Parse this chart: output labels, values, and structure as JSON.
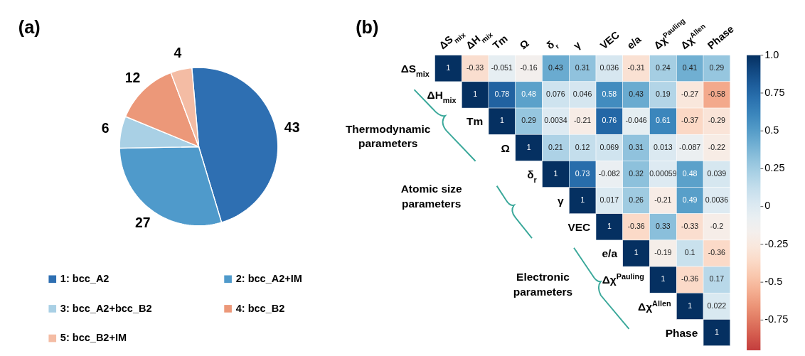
{
  "chart_data": [
    {
      "type": "pie",
      "title": "(a)",
      "categories": [
        "1: bcc_A2",
        "2: bcc_A2+IM",
        "3: bcc_A2+bcc_B2",
        "4: bcc_B2",
        "5: bcc_B2+IM"
      ],
      "values": [
        43,
        27,
        6,
        12,
        4
      ],
      "colors": [
        "#2e6fb2",
        "#4f9acb",
        "#a9d0e5",
        "#ec9879",
        "#f4bca4"
      ],
      "data_labels": true,
      "legend": "bottom"
    },
    {
      "type": "heatmap",
      "title": "(b)",
      "categories": [
        "ΔS$_{mix}$",
        "ΔH$_{mix}$",
        "Tm",
        "Ω",
        "δ$_{r}$",
        "γ",
        "VEC",
        "e/a",
        "Δχ$^{Pauling}$",
        "Δχ$^{Allen}$",
        "Phase"
      ],
      "y_categories": [
        "ΔS$_{mix}$",
        "ΔH$_{mix}$",
        "Tm",
        "Ω",
        "δ$_{r}$",
        "γ",
        "VEC",
        "e/a",
        "Δχ$^{Pauling}$",
        "Δχ$^{Allen}$",
        "Phase"
      ],
      "cells": [
        [
          1,
          -0.33,
          -0.051,
          -0.16,
          0.43,
          0.31,
          0.036,
          -0.31,
          0.24,
          0.41,
          0.29
        ],
        [
          null,
          1,
          0.78,
          0.48,
          0.076,
          0.046,
          0.58,
          0.43,
          0.19,
          -0.27,
          -0.58
        ],
        [
          null,
          null,
          1,
          0.29,
          0.0034,
          -0.21,
          0.76,
          -0.046,
          0.61,
          -0.37,
          -0.29
        ],
        [
          null,
          null,
          null,
          1,
          0.21,
          0.12,
          0.069,
          0.31,
          0.013,
          -0.087,
          -0.22
        ],
        [
          null,
          null,
          null,
          null,
          1,
          0.73,
          -0.082,
          0.32,
          0.00059,
          0.48,
          0.039
        ],
        [
          null,
          null,
          null,
          null,
          null,
          1,
          0.017,
          0.26,
          -0.21,
          0.49,
          0.0036
        ],
        [
          null,
          null,
          null,
          null,
          null,
          null,
          1,
          -0.36,
          0.33,
          -0.33,
          -0.2
        ],
        [
          null,
          null,
          null,
          null,
          null,
          null,
          null,
          1,
          -0.19,
          0.1,
          -0.36
        ],
        [
          null,
          null,
          null,
          null,
          null,
          null,
          null,
          null,
          1,
          -0.36,
          0.17
        ],
        [
          null,
          null,
          null,
          null,
          null,
          null,
          null,
          null,
          null,
          1,
          0.022
        ],
        [
          null,
          null,
          null,
          null,
          null,
          null,
          null,
          null,
          null,
          null,
          1
        ]
      ],
      "data_labels": true,
      "clim": [
        -0.95,
        1
      ],
      "cticks": [
        {
          "value": 1,
          "label": "1.0"
        },
        0.75,
        0.5,
        0.25,
        0,
        -0.25,
        -0.5,
        -0.75
      ],
      "annotations": [
        "Thermodynamic parameters",
        "Atomic size parameters",
        "Electronic parameters"
      ]
    }
  ]
}
